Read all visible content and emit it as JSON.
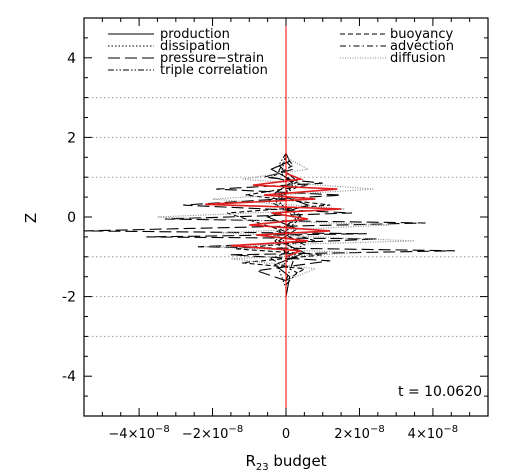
{
  "chart_data": {
    "type": "line",
    "xlabel_main": "R",
    "xlabel_sub": "23",
    "xlabel_rest": " budget",
    "ylabel": "Z",
    "xlim": [
      -5.5e-08,
      5.5e-08
    ],
    "ylim": [
      -5,
      5
    ],
    "x_ticks": [
      {
        "v": -4e-08,
        "m": "−4",
        "e": "−8"
      },
      {
        "v": -2e-08,
        "m": "−2",
        "e": "−8"
      },
      {
        "v": 0,
        "m": "0",
        "e": ""
      },
      {
        "v": 2e-08,
        "m": "2",
        "e": "−8"
      },
      {
        "v": 4e-08,
        "m": "4",
        "e": "−8"
      }
    ],
    "y_ticks": [
      -4,
      -2,
      0,
      2,
      4
    ],
    "dotted_hlines": [
      3,
      2,
      1,
      -1,
      -2,
      -3
    ],
    "zero_line_color": "#ff0000",
    "annotation": "t = 10.0620",
    "legend_left": [
      "production",
      "dissipation",
      "pressure−strain",
      "triple correlation"
    ],
    "legend_right": [
      "buoyancy",
      "advection",
      "diffusion"
    ],
    "series": [
      {
        "name": "production",
        "dash": "solid",
        "color": "#000000",
        "x": [
          0.0,
          1e-09,
          -3e-09,
          5e-09,
          -2e-09,
          3e-09,
          -5e-09,
          6e-09,
          -3e-09,
          2e-09,
          -4e-09,
          1e-09,
          0.0
        ],
        "y": [
          -2.0,
          -1.5,
          -1.2,
          -0.9,
          -0.6,
          -0.3,
          0.0,
          0.3,
          0.6,
          0.9,
          1.2,
          1.4,
          1.6
        ]
      },
      {
        "name": "buoyancy",
        "dash": "dashed",
        "color": "#000000",
        "x": [
          0.0,
          5e-09,
          -1.2e-08,
          1e-08,
          -1.4e-08,
          8e-09,
          -1.6e-08,
          1.2e-08,
          -1.1e-08,
          6e-09,
          -4e-09,
          2e-09,
          0.0
        ],
        "y": [
          -1.6,
          -1.3,
          -1.15,
          -0.95,
          -0.8,
          -0.6,
          0.1,
          0.3,
          0.55,
          0.8,
          1.0,
          1.3,
          1.5
        ]
      },
      {
        "name": "dissipation",
        "dash": "dotted",
        "color": "#000000",
        "x": [
          0.0,
          -2e-09,
          3e-09,
          -3e-09,
          4e-09,
          -3e-09,
          2e-09,
          -1e-09,
          0.0
        ],
        "y": [
          -1.8,
          -1.3,
          -0.9,
          -0.4,
          0.0,
          0.4,
          0.8,
          1.2,
          1.6
        ]
      },
      {
        "name": "advection",
        "dash": "dashdot",
        "color": "#000000",
        "x": [
          0.0,
          3e-09,
          -4e-09,
          5e-09,
          -2e-09,
          4e-09,
          -5e-09,
          3e-09,
          -2e-09,
          0.0
        ],
        "y": [
          -1.7,
          -1.4,
          -1.05,
          -0.7,
          -0.35,
          0.05,
          0.4,
          0.75,
          1.15,
          1.5
        ]
      },
      {
        "name": "pressure−strain",
        "dash": "longdash",
        "color": "#000000",
        "x": [
          0.0,
          -8e-09,
          1.2e-08,
          -1.5e-08,
          4.6e-08,
          -2.4e-08,
          2.5e-08,
          -3.8e-08,
          2.2e-08,
          -5.5e-08,
          3.8e-08,
          -3.3e-08,
          1.8e-08,
          -2.8e-08,
          1.5e-08,
          -1.9e-08,
          1e-08,
          -6e-09,
          2e-09,
          0.0
        ],
        "y": [
          -1.6,
          -1.35,
          -1.1,
          -0.95,
          -0.85,
          -0.75,
          -0.55,
          -0.5,
          -0.42,
          -0.35,
          -0.15,
          -0.05,
          0.1,
          0.3,
          0.55,
          0.7,
          0.85,
          1.0,
          1.2,
          1.4
        ]
      },
      {
        "name": "diffusion",
        "dash": "finedot",
        "color": "#000000",
        "x": [
          0.0,
          8e-09,
          -1.5e-08,
          2e-08,
          -2.2e-08,
          3.5e-08,
          -1.8e-08,
          2.8e-08,
          -3.5e-08,
          1.6e-08,
          -2e-08,
          2.4e-08,
          -1.2e-08,
          6e-09,
          0.0
        ],
        "y": [
          -1.6,
          -1.3,
          -1.05,
          -0.9,
          -0.75,
          -0.6,
          -0.4,
          -0.2,
          0.0,
          0.2,
          0.45,
          0.7,
          0.95,
          1.2,
          1.5
        ]
      },
      {
        "name": "triple correlation",
        "dash": "dashdotdot",
        "color": "#000000",
        "x": [
          0.0,
          2e-09,
          -3e-09,
          3e-09,
          -2e-09,
          3e-09,
          -2e-09,
          0.0
        ],
        "y": [
          -1.6,
          -1.1,
          -0.6,
          -0.1,
          0.4,
          0.9,
          1.3,
          1.6
        ]
      },
      {
        "name": "",
        "dash": "solid",
        "color": "#e02020",
        "x": [
          0.0,
          4e-09,
          -1.5e-08,
          6e-09,
          -8e-09,
          1.2e-08,
          -1e-08,
          6e-09,
          -4e-09,
          1.5e-08,
          -2.2e-08,
          8e-09,
          -6e-09,
          1.4e-08,
          -9e-09,
          4e-09,
          0.0
        ],
        "y": [
          -1.0,
          -0.85,
          -0.72,
          -0.6,
          -0.45,
          -0.35,
          -0.2,
          -0.05,
          0.1,
          0.2,
          0.32,
          0.45,
          0.55,
          0.7,
          0.8,
          0.95,
          1.1
        ]
      }
    ]
  }
}
